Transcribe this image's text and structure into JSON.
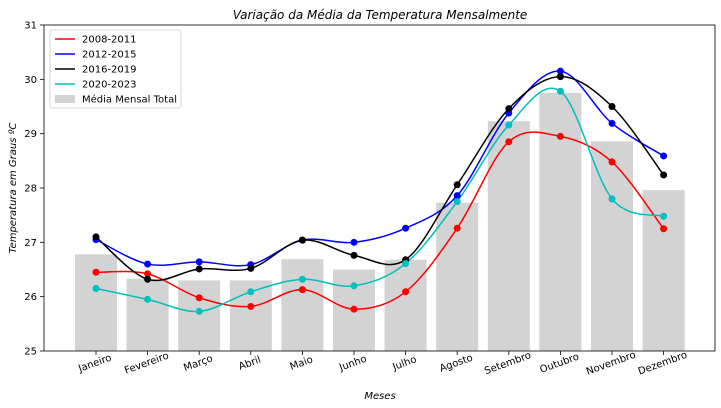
{
  "chart_data": {
    "type": "line",
    "title": "Variação da Média da Temperatura Mensalmente",
    "xlabel": "Meses",
    "ylabel": "Temperatura em Graus ºC",
    "ylim": [
      25,
      31
    ],
    "yticks": [
      "25",
      "26",
      "27",
      "28",
      "29",
      "30",
      "31"
    ],
    "grid": false,
    "legend_position": "top-left",
    "categories": [
      "Janeiro",
      "Fevereiro",
      "Março",
      "Abril",
      "Maio",
      "Junho",
      "Julho",
      "Agosto",
      "Setembro",
      "Outubro",
      "Novembro",
      "Dezembro"
    ],
    "bars": {
      "name": "Média Mensal Total",
      "color": "#d3d3d3",
      "values": [
        26.78,
        26.33,
        26.3,
        26.3,
        26.69,
        26.5,
        26.68,
        27.73,
        29.23,
        29.75,
        28.86,
        27.96
      ]
    },
    "series": [
      {
        "name": "2008-2011",
        "color": "#ff0000",
        "values": [
          26.45,
          26.42,
          25.98,
          25.82,
          26.13,
          25.77,
          26.09,
          27.26,
          28.85,
          28.95,
          28.48,
          27.25
        ]
      },
      {
        "name": "2012-2015",
        "color": "#0000ff",
        "values": [
          27.05,
          26.6,
          26.64,
          26.59,
          27.04,
          27.0,
          27.26,
          27.86,
          29.38,
          30.15,
          29.19,
          28.59
        ]
      },
      {
        "name": "2016-2019",
        "color": "#000000",
        "values": [
          27.1,
          26.32,
          26.51,
          26.52,
          27.04,
          26.76,
          26.68,
          28.06,
          29.46,
          30.05,
          29.5,
          28.24
        ]
      },
      {
        "name": "2020-2023",
        "color": "#00bfbf",
        "values": [
          26.15,
          25.95,
          25.73,
          26.09,
          26.32,
          26.2,
          26.61,
          27.75,
          29.16,
          29.78,
          27.8,
          27.48
        ]
      }
    ]
  }
}
